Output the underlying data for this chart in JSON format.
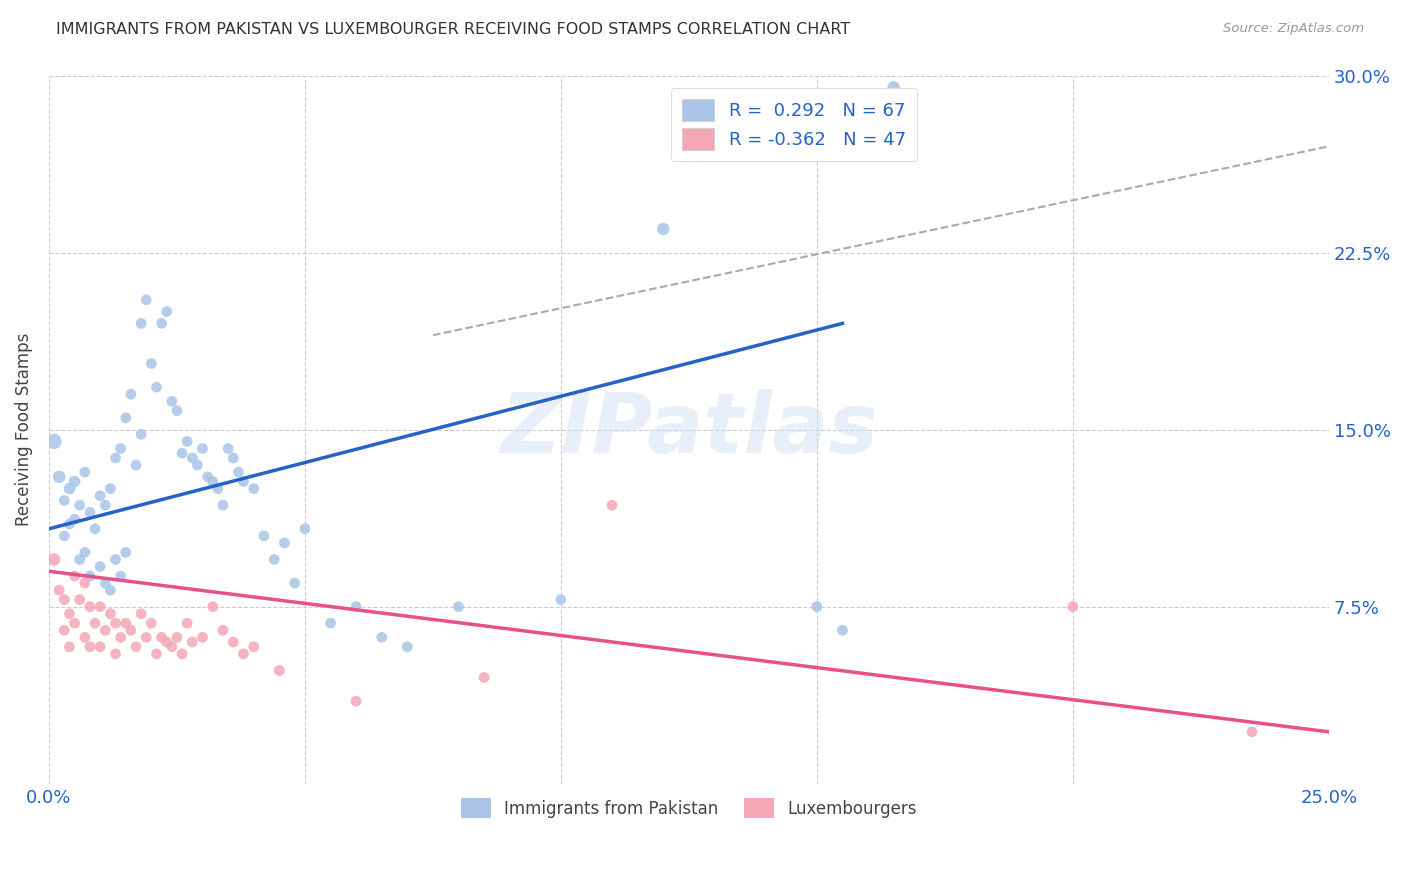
{
  "title": "IMMIGRANTS FROM PAKISTAN VS LUXEMBOURGER RECEIVING FOOD STAMPS CORRELATION CHART",
  "source": "Source: ZipAtlas.com",
  "ylabel": "Receiving Food Stamps",
  "xlim": [
    0.0,
    0.25
  ],
  "ylim": [
    0.0,
    0.3
  ],
  "xticks": [
    0.0,
    0.05,
    0.1,
    0.15,
    0.2,
    0.25
  ],
  "xticklabels": [
    "0.0%",
    "",
    "",
    "",
    "",
    "25.0%"
  ],
  "yticks": [
    0.0,
    0.075,
    0.15,
    0.225,
    0.3
  ],
  "yticklabels": [
    "",
    "7.5%",
    "15.0%",
    "22.5%",
    "30.0%"
  ],
  "R_blue": 0.292,
  "N_blue": 67,
  "R_pink": -0.362,
  "N_pink": 47,
  "blue_color": "#aac4e8",
  "pink_color": "#f4a7b5",
  "blue_line_color": "#2563c7",
  "pink_line_color": "#e8508a",
  "dash_line_color": "#aaaaaa",
  "legend_blue_label": "R =  0.292   N = 67",
  "legend_pink_label": "R = -0.362   N = 47",
  "bottom_legend_blue": "Immigrants from Pakistan",
  "bottom_legend_pink": "Luxembourgers",
  "watermark": "ZIPatlas",
  "blue_x": [
    0.001,
    0.002,
    0.003,
    0.003,
    0.004,
    0.004,
    0.005,
    0.005,
    0.006,
    0.006,
    0.007,
    0.007,
    0.008,
    0.008,
    0.009,
    0.01,
    0.01,
    0.011,
    0.011,
    0.012,
    0.012,
    0.013,
    0.013,
    0.014,
    0.014,
    0.015,
    0.015,
    0.016,
    0.017,
    0.018,
    0.018,
    0.019,
    0.02,
    0.021,
    0.022,
    0.023,
    0.024,
    0.025,
    0.026,
    0.027,
    0.028,
    0.029,
    0.03,
    0.031,
    0.032,
    0.033,
    0.034,
    0.035,
    0.036,
    0.037,
    0.038,
    0.04,
    0.042,
    0.044,
    0.046,
    0.048,
    0.05,
    0.055,
    0.06,
    0.065,
    0.07,
    0.08,
    0.1,
    0.12,
    0.15,
    0.155,
    0.165
  ],
  "blue_y": [
    0.145,
    0.13,
    0.12,
    0.105,
    0.125,
    0.11,
    0.128,
    0.112,
    0.118,
    0.095,
    0.132,
    0.098,
    0.115,
    0.088,
    0.108,
    0.122,
    0.092,
    0.118,
    0.085,
    0.125,
    0.082,
    0.138,
    0.095,
    0.142,
    0.088,
    0.155,
    0.098,
    0.165,
    0.135,
    0.148,
    0.195,
    0.205,
    0.178,
    0.168,
    0.195,
    0.2,
    0.162,
    0.158,
    0.14,
    0.145,
    0.138,
    0.135,
    0.142,
    0.13,
    0.128,
    0.125,
    0.118,
    0.142,
    0.138,
    0.132,
    0.128,
    0.125,
    0.105,
    0.095,
    0.102,
    0.085,
    0.108,
    0.068,
    0.075,
    0.062,
    0.058,
    0.075,
    0.078,
    0.235,
    0.075,
    0.065,
    0.295
  ],
  "blue_sz": [
    120,
    80,
    60,
    60,
    70,
    60,
    70,
    60,
    60,
    60,
    60,
    60,
    60,
    60,
    60,
    60,
    60,
    60,
    60,
    60,
    60,
    60,
    60,
    60,
    60,
    60,
    60,
    60,
    60,
    60,
    60,
    60,
    60,
    60,
    60,
    60,
    60,
    60,
    60,
    60,
    60,
    60,
    60,
    60,
    60,
    60,
    60,
    60,
    60,
    60,
    60,
    60,
    60,
    60,
    60,
    60,
    60,
    60,
    60,
    60,
    60,
    60,
    60,
    80,
    60,
    60,
    80
  ],
  "pink_x": [
    0.001,
    0.002,
    0.003,
    0.003,
    0.004,
    0.004,
    0.005,
    0.005,
    0.006,
    0.007,
    0.007,
    0.008,
    0.008,
    0.009,
    0.01,
    0.01,
    0.011,
    0.012,
    0.013,
    0.013,
    0.014,
    0.015,
    0.016,
    0.017,
    0.018,
    0.019,
    0.02,
    0.021,
    0.022,
    0.023,
    0.024,
    0.025,
    0.026,
    0.027,
    0.028,
    0.03,
    0.032,
    0.034,
    0.036,
    0.038,
    0.04,
    0.045,
    0.06,
    0.085,
    0.11,
    0.2,
    0.235
  ],
  "pink_y": [
    0.095,
    0.082,
    0.078,
    0.065,
    0.072,
    0.058,
    0.088,
    0.068,
    0.078,
    0.085,
    0.062,
    0.075,
    0.058,
    0.068,
    0.075,
    0.058,
    0.065,
    0.072,
    0.068,
    0.055,
    0.062,
    0.068,
    0.065,
    0.058,
    0.072,
    0.062,
    0.068,
    0.055,
    0.062,
    0.06,
    0.058,
    0.062,
    0.055,
    0.068,
    0.06,
    0.062,
    0.075,
    0.065,
    0.06,
    0.055,
    0.058,
    0.048,
    0.035,
    0.045,
    0.118,
    0.075,
    0.022
  ],
  "pink_sz": [
    80,
    60,
    60,
    60,
    60,
    60,
    60,
    60,
    60,
    60,
    60,
    60,
    60,
    60,
    60,
    60,
    60,
    60,
    60,
    60,
    60,
    60,
    60,
    60,
    60,
    60,
    60,
    60,
    60,
    60,
    60,
    60,
    60,
    60,
    60,
    60,
    60,
    60,
    60,
    60,
    60,
    60,
    60,
    60,
    60,
    60,
    60
  ],
  "blue_line_x": [
    0.0,
    0.155
  ],
  "blue_line_y": [
    0.108,
    0.195
  ],
  "dash_line_x": [
    0.075,
    0.25
  ],
  "dash_line_y": [
    0.19,
    0.27
  ],
  "pink_line_x": [
    0.0,
    0.25
  ],
  "pink_line_y": [
    0.09,
    0.022
  ]
}
